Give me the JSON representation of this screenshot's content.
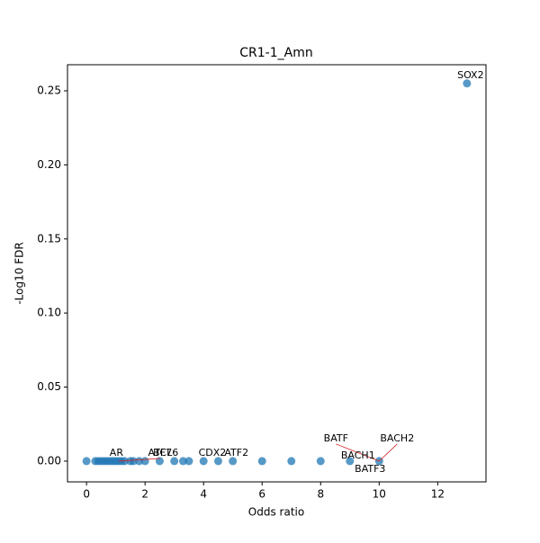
{
  "chart_data": {
    "type": "scatter",
    "title": "CR1-1_Amn",
    "x_label": "Odds ratio",
    "y_label": "-Log10 FDR",
    "x": [
      0,
      0.3,
      0.4,
      0.5,
      0.6,
      0.7,
      0.8,
      0.9,
      1.0,
      1.1,
      1.2,
      1.3,
      1.5,
      1.6,
      1.8,
      2,
      2.5,
      3,
      3.3,
      3.5,
      4,
      4.5,
      5,
      6,
      7,
      8,
      9,
      10,
      13
    ],
    "values": [
      0,
      0,
      0,
      0,
      0,
      0,
      0,
      0,
      0,
      0,
      0,
      0,
      0,
      0,
      0,
      0,
      0,
      0,
      0,
      0,
      0,
      0,
      0,
      0,
      0,
      0,
      0,
      0,
      0.255
    ],
    "color": "#1f77b4",
    "xlim": [
      -0.65,
      13.65
    ],
    "xticks": [
      0,
      2,
      4,
      6,
      8,
      10,
      12
    ],
    "ylim": [
      -0.014,
      0.2676
    ],
    "yticks": [
      {
        "value": 0,
        "label": "0.00"
      },
      {
        "value": 0.05,
        "label": "0.05"
      },
      {
        "value": 0.1,
        "label": "0.10"
      },
      {
        "value": 0.15,
        "label": "0.15"
      },
      {
        "value": 0.2,
        "label": "0.20"
      },
      {
        "value": 0.25,
        "label": "0.25"
      }
    ],
    "annotations": [
      {
        "text": "SOX2",
        "x": 13,
        "y": 0.255
      },
      {
        "text": "AR",
        "x": 0.5,
        "y": 0
      },
      {
        "text": "ATF7",
        "x": 1.1,
        "y": 0
      },
      {
        "text": "BCL6",
        "x": 2,
        "y": 0
      },
      {
        "text": "CDX2",
        "x": 3.5,
        "y": 0
      },
      {
        "text": "ATF2",
        "x": 5,
        "y": 0
      },
      {
        "text": "BATF",
        "x": 10,
        "y": 0
      },
      {
        "text": "BACH2",
        "x": 10,
        "y": 0
      },
      {
        "text": "BACH1",
        "x": 9,
        "y": 0
      },
      {
        "text": "BATF3",
        "x": 10,
        "y": 0
      }
    ]
  }
}
